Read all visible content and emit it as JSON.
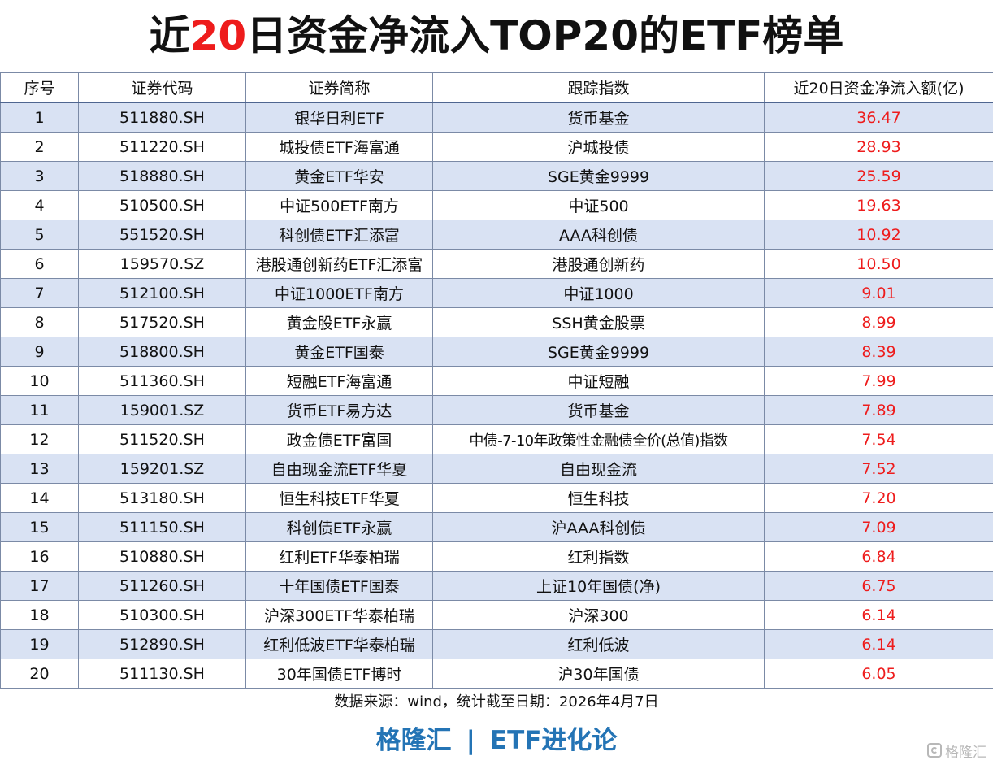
{
  "title": {
    "prefix": "近",
    "highlight": "20",
    "suffix": "日资金净流入TOP20的ETF榜单"
  },
  "table": {
    "headers": [
      "序号",
      "证券代码",
      "证券简称",
      "跟踪指数",
      "近20日资金净流入额(亿)"
    ],
    "rows": [
      {
        "rank": "1",
        "code": "511880.SH",
        "name": "银华日利ETF",
        "index": "货币基金",
        "flow": "36.47"
      },
      {
        "rank": "2",
        "code": "511220.SH",
        "name": "城投债ETF海富通",
        "index": "沪城投债",
        "flow": "28.93"
      },
      {
        "rank": "3",
        "code": "518880.SH",
        "name": "黄金ETF华安",
        "index": "SGE黄金9999",
        "flow": "25.59"
      },
      {
        "rank": "4",
        "code": "510500.SH",
        "name": "中证500ETF南方",
        "index": "中证500",
        "flow": "19.63"
      },
      {
        "rank": "5",
        "code": "551520.SH",
        "name": "科创债ETF汇添富",
        "index": "AAA科创债",
        "flow": "10.92"
      },
      {
        "rank": "6",
        "code": "159570.SZ",
        "name": "港股通创新药ETF汇添富",
        "index": "港股通创新药",
        "flow": "10.50"
      },
      {
        "rank": "7",
        "code": "512100.SH",
        "name": "中证1000ETF南方",
        "index": "中证1000",
        "flow": "9.01"
      },
      {
        "rank": "8",
        "code": "517520.SH",
        "name": "黄金股ETF永赢",
        "index": "SSH黄金股票",
        "flow": "8.99"
      },
      {
        "rank": "9",
        "code": "518800.SH",
        "name": "黄金ETF国泰",
        "index": "SGE黄金9999",
        "flow": "8.39"
      },
      {
        "rank": "10",
        "code": "511360.SH",
        "name": "短融ETF海富通",
        "index": "中证短融",
        "flow": "7.99"
      },
      {
        "rank": "11",
        "code": "159001.SZ",
        "name": "货币ETF易方达",
        "index": "货币基金",
        "flow": "7.89"
      },
      {
        "rank": "12",
        "code": "511520.SH",
        "name": "政金债ETF富国",
        "index": "中债-7-10年政策性金融债全价(总值)指数",
        "flow": "7.54"
      },
      {
        "rank": "13",
        "code": "159201.SZ",
        "name": "自由现金流ETF华夏",
        "index": "自由现金流",
        "flow": "7.52"
      },
      {
        "rank": "14",
        "code": "513180.SH",
        "name": "恒生科技ETF华夏",
        "index": "恒生科技",
        "flow": "7.20"
      },
      {
        "rank": "15",
        "code": "511150.SH",
        "name": "科创债ETF永赢",
        "index": "沪AAA科创债",
        "flow": "7.09"
      },
      {
        "rank": "16",
        "code": "510880.SH",
        "name": "红利ETF华泰柏瑞",
        "index": "红利指数",
        "flow": "6.84"
      },
      {
        "rank": "17",
        "code": "511260.SH",
        "name": "十年国债ETF国泰",
        "index": "上证10年国债(净)",
        "flow": "6.75"
      },
      {
        "rank": "18",
        "code": "510300.SH",
        "name": "沪深300ETF华泰柏瑞",
        "index": "沪深300",
        "flow": "6.14"
      },
      {
        "rank": "19",
        "code": "512890.SH",
        "name": "红利低波ETF华泰柏瑞",
        "index": "红利低波",
        "flow": "6.14"
      },
      {
        "rank": "20",
        "code": "511130.SH",
        "name": "30年国债ETF博时",
        "index": "沪30年国债",
        "flow": "6.05"
      }
    ]
  },
  "source": "数据来源：wind，统计截至日期：2026年4月7日",
  "brand": {
    "left": "格隆汇",
    "separator": "|",
    "right": "ETF进化论"
  },
  "watermark": {
    "icon": "gelonghui-logo-icon",
    "text": "格隆汇"
  },
  "colors": {
    "highlight": "#ee1c1c",
    "brand": "#2474b5",
    "stripe": "#d9e2f3",
    "border": "#7b8aa6"
  }
}
